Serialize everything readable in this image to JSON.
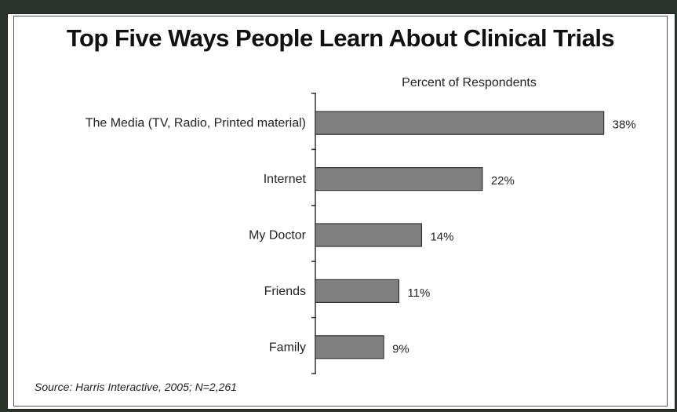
{
  "chart_data": {
    "type": "bar",
    "orientation": "horizontal",
    "title": "Top Five Ways People Learn About Clinical Trials",
    "subtitle": "Percent of Respondents",
    "categories": [
      "The Media (TV, Radio, Printed material)",
      "Internet",
      "My Doctor",
      "Friends",
      "Family"
    ],
    "values": [
      38,
      22,
      14,
      11,
      9
    ],
    "value_labels": [
      "38%",
      "22%",
      "14%",
      "11%",
      "9%"
    ],
    "xlim": [
      0,
      40
    ],
    "bar_color": "#808080",
    "grid": false,
    "source": "Source: Harris Interactive, 2005; N=2,261"
  },
  "colors": {
    "background": "#2b332d",
    "panel": "#ffffff",
    "bar": "#808080"
  }
}
